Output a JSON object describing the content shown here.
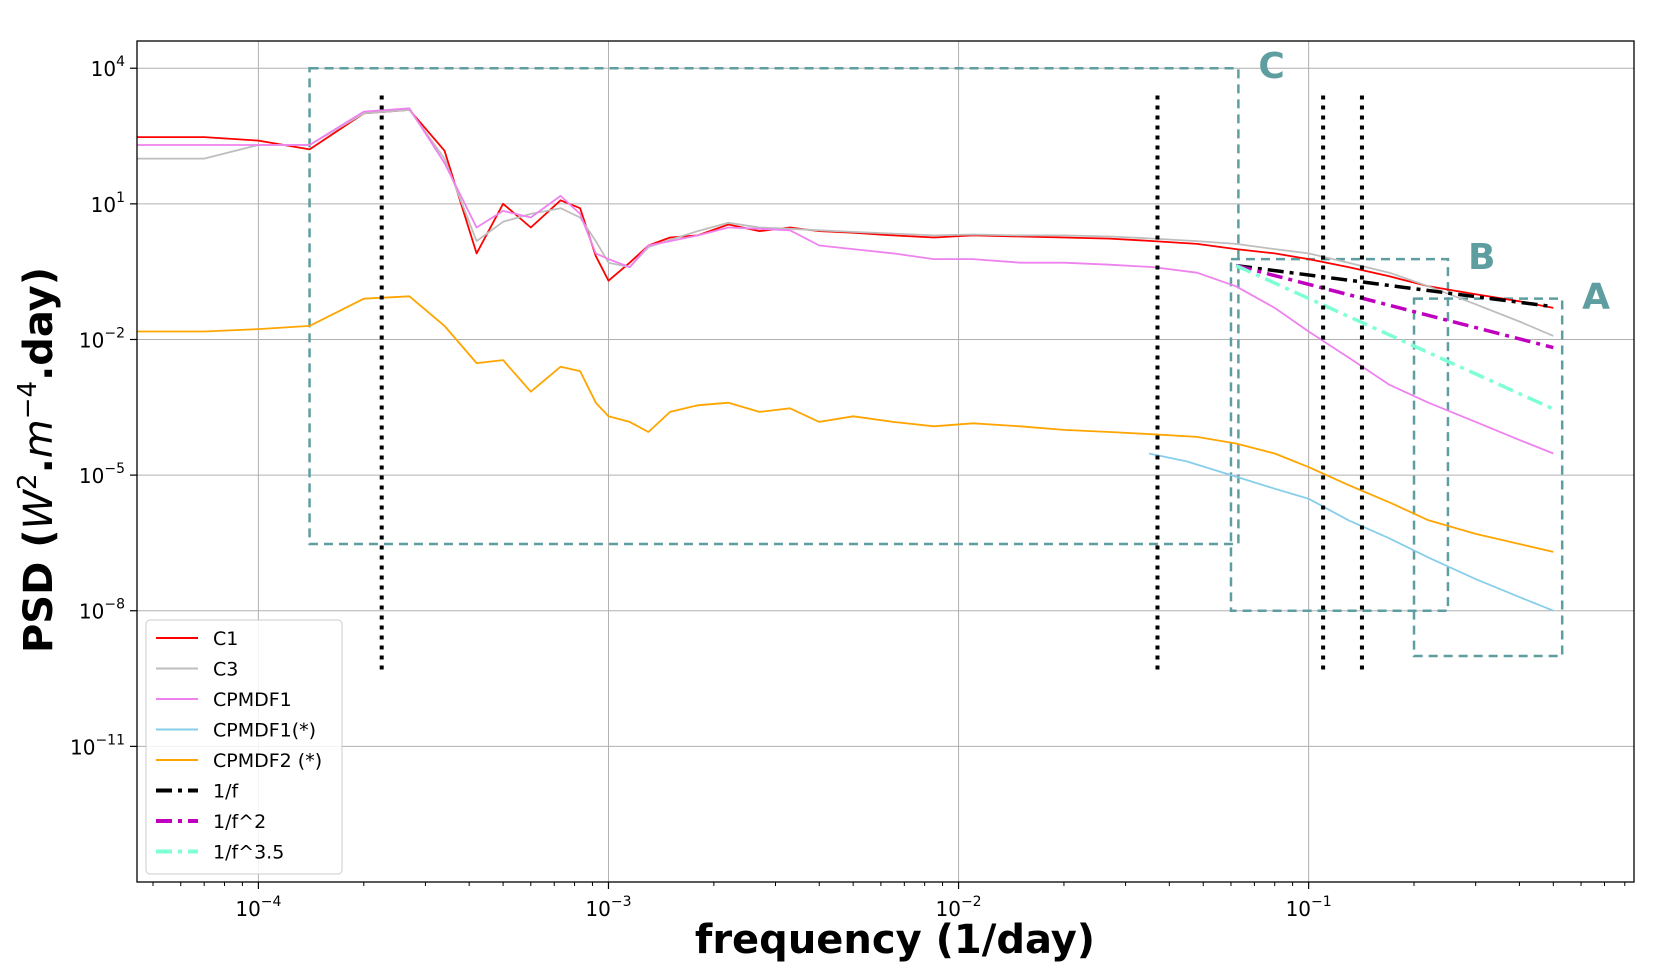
{
  "chart_data": {
    "type": "line",
    "title": "",
    "xlabel": "frequency (1/day)",
    "ylabel_parts": [
      "PSD (",
      "W",
      "2",
      ".",
      "m",
      "−4",
      ".day)"
    ],
    "xscale": "log",
    "yscale": "log",
    "xlim": [
      4.5e-05,
      0.85
    ],
    "ylim": [
      1e-14,
      40000.0
    ],
    "grid": true,
    "legend_position": "lower-left",
    "x_ticks": [
      {
        "value": 0.0001,
        "base": "10",
        "exp": "−4"
      },
      {
        "value": 0.001,
        "base": "10",
        "exp": "−3"
      },
      {
        "value": 0.01,
        "base": "10",
        "exp": "−2"
      },
      {
        "value": 0.1,
        "base": "10",
        "exp": "−1"
      }
    ],
    "y_ticks": [
      {
        "value": 10000.0,
        "base": "10",
        "exp": "4"
      },
      {
        "value": 10,
        "base": "10",
        "exp": "1"
      },
      {
        "value": 0.01,
        "base": "10",
        "exp": "−2"
      },
      {
        "value": 1e-05,
        "base": "10",
        "exp": "−5"
      },
      {
        "value": 1e-08,
        "base": "10",
        "exp": "−8"
      },
      {
        "value": 1e-11,
        "base": "10",
        "exp": "−11"
      }
    ],
    "series": [
      {
        "name": "C1",
        "color": "#ff0000",
        "style": "solid",
        "x": [
          4.5e-05,
          7e-05,
          0.0001,
          0.00014,
          0.0002,
          0.00027,
          0.00034,
          0.00042,
          0.0005,
          0.0006,
          0.00073,
          0.00083,
          0.00092,
          0.001,
          0.00115,
          0.0013,
          0.0015,
          0.0018,
          0.0022,
          0.0027,
          0.0033,
          0.004,
          0.005,
          0.0065,
          0.0085,
          0.011,
          0.015,
          0.02,
          0.027,
          0.036,
          0.048,
          0.062,
          0.08,
          0.1,
          0.13,
          0.17,
          0.22,
          0.3,
          0.4,
          0.5
        ],
        "y": [
          300,
          300,
          250,
          160,
          1000,
          1200,
          150,
          0.8,
          10,
          3,
          12,
          8,
          0.7,
          0.2,
          0.5,
          1.2,
          1.8,
          2,
          3.5,
          2.5,
          3,
          2.5,
          2.3,
          2,
          1.8,
          2,
          1.9,
          1.8,
          1.7,
          1.5,
          1.3,
          1,
          0.8,
          0.6,
          0.4,
          0.25,
          0.15,
          0.1,
          0.07,
          0.05
        ]
      },
      {
        "name": "C3",
        "color": "#bebebe",
        "style": "solid",
        "x": [
          4.5e-05,
          7e-05,
          0.0001,
          0.00014,
          0.0002,
          0.00027,
          0.00034,
          0.00042,
          0.0005,
          0.0006,
          0.00073,
          0.00083,
          0.00092,
          0.001,
          0.00115,
          0.0013,
          0.0015,
          0.0018,
          0.0022,
          0.0027,
          0.0033,
          0.004,
          0.005,
          0.0065,
          0.0085,
          0.011,
          0.015,
          0.02,
          0.027,
          0.036,
          0.048,
          0.062,
          0.08,
          0.1,
          0.13,
          0.17,
          0.22,
          0.3,
          0.4,
          0.5
        ],
        "y": [
          100,
          100,
          200,
          200,
          1000,
          1200,
          100,
          1.5,
          4,
          6,
          8,
          5,
          1.5,
          0.5,
          0.4,
          1.1,
          1.6,
          2.5,
          3.8,
          3,
          2.8,
          2.6,
          2.4,
          2.2,
          2,
          2.1,
          2,
          2,
          1.9,
          1.7,
          1.5,
          1.3,
          1,
          0.8,
          0.5,
          0.3,
          0.15,
          0.06,
          0.025,
          0.012
        ]
      },
      {
        "name": "CPMDF1",
        "color": "#ee82ee",
        "style": "solid",
        "x": [
          4.5e-05,
          7e-05,
          0.0001,
          0.00014,
          0.0002,
          0.00027,
          0.00034,
          0.00042,
          0.0005,
          0.0006,
          0.00073,
          0.00083,
          0.00092,
          0.001,
          0.00115,
          0.0013,
          0.0015,
          0.0018,
          0.0022,
          0.0027,
          0.0033,
          0.004,
          0.005,
          0.0065,
          0.0085,
          0.011,
          0.015,
          0.02,
          0.027,
          0.036,
          0.048,
          0.062,
          0.08,
          0.1,
          0.13,
          0.17,
          0.22,
          0.3,
          0.4,
          0.5
        ],
        "y": [
          200,
          200,
          200,
          200,
          1100,
          1300,
          80,
          3,
          7,
          5,
          15,
          6,
          0.8,
          0.6,
          0.4,
          1.2,
          1.5,
          2,
          3,
          2.8,
          2.6,
          1.2,
          1,
          0.8,
          0.6,
          0.6,
          0.5,
          0.5,
          0.45,
          0.4,
          0.3,
          0.15,
          0.05,
          0.015,
          0.004,
          0.001,
          0.0004,
          0.00015,
          6e-05,
          3e-05
        ]
      },
      {
        "name": "CPMDF1(*)",
        "color": "#87ceeb",
        "style": "solid",
        "x": [
          0.035,
          0.045,
          0.06,
          0.08,
          0.1,
          0.13,
          0.17,
          0.22,
          0.3,
          0.4,
          0.5
        ],
        "y": [
          3e-05,
          2e-05,
          1e-05,
          5e-06,
          3e-06,
          1e-06,
          4e-07,
          1.5e-07,
          5e-08,
          2e-08,
          1e-08
        ]
      },
      {
        "name": "CPMDF2 (*)",
        "color": "#ffa500",
        "style": "solid",
        "x": [
          4.5e-05,
          7e-05,
          0.0001,
          0.00014,
          0.0002,
          0.00027,
          0.00034,
          0.00042,
          0.0005,
          0.0006,
          0.00073,
          0.00083,
          0.00092,
          0.001,
          0.00115,
          0.0013,
          0.0015,
          0.0018,
          0.0022,
          0.0027,
          0.0033,
          0.004,
          0.005,
          0.0065,
          0.0085,
          0.011,
          0.015,
          0.02,
          0.027,
          0.036,
          0.048,
          0.062,
          0.08,
          0.1,
          0.13,
          0.17,
          0.22,
          0.3,
          0.4,
          0.5
        ],
        "y": [
          0.015,
          0.015,
          0.017,
          0.02,
          0.08,
          0.09,
          0.02,
          0.003,
          0.0035,
          0.0007,
          0.0025,
          0.002,
          0.0004,
          0.0002,
          0.00015,
          9e-05,
          0.00025,
          0.00035,
          0.0004,
          0.00025,
          0.0003,
          0.00015,
          0.0002,
          0.00015,
          0.00012,
          0.00014,
          0.00012,
          0.0001,
          9e-05,
          8e-05,
          7e-05,
          5e-05,
          3e-05,
          1.5e-05,
          6e-06,
          2.5e-06,
          1e-06,
          5e-07,
          3e-07,
          2e-07
        ]
      },
      {
        "name": "1/f",
        "color": "#000000",
        "style": "dashdot",
        "x": [
          0.062,
          0.5
        ],
        "y": [
          0.43,
          0.053
        ]
      },
      {
        "name": "1/f^2",
        "color": "#bf00bf",
        "style": "dashdot",
        "x": [
          0.062,
          0.5
        ],
        "y": [
          0.43,
          0.0066
        ]
      },
      {
        "name": "1/f^3.5",
        "color": "#7fffd4",
        "style": "dashdot",
        "x": [
          0.062,
          0.5
        ],
        "y": [
          0.43,
          0.00029
        ]
      }
    ],
    "reference_lines_x": [
      0.000225,
      0.037,
      0.11,
      0.142
    ],
    "reference_lines_y_range": [
      4e-10,
      2500
    ],
    "regions": [
      {
        "label": "C",
        "x_range": [
          0.00014,
          0.063
        ],
        "y_range": [
          3e-07,
          10000.0
        ]
      },
      {
        "label": "B",
        "x_range": [
          0.06,
          0.25
        ],
        "y_range": [
          1e-08,
          0.6
        ]
      },
      {
        "label": "A",
        "x_range": [
          0.2,
          0.53
        ],
        "y_range": [
          1e-09,
          0.08
        ]
      }
    ],
    "region_color": "#5f9ea0"
  }
}
